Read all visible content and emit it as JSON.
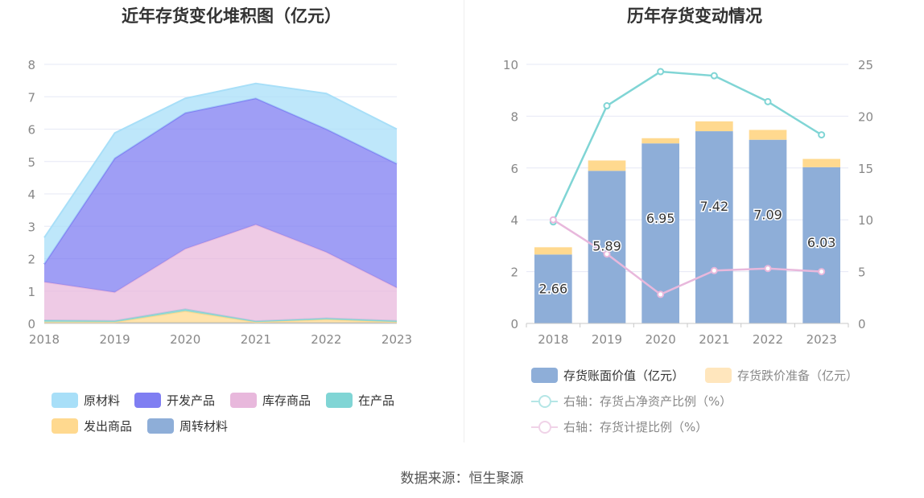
{
  "left_chart": {
    "title": "近年存货变化堆积图（亿元）",
    "legend": [
      "原材料",
      "开发产品",
      "库存商品",
      "在产品",
      "发出商品",
      "周转材料"
    ]
  },
  "right_chart": {
    "title": "历年存货变动情况",
    "legend": [
      "存货账面价值（亿元）",
      "存货跌价准备（亿元）",
      "右轴：存货占净资产比例（%）",
      "右轴：存货计提比例（%）"
    ]
  },
  "source": "数据来源：恒生聚源",
  "chart_data": [
    {
      "type": "area",
      "stacked": true,
      "title": "近年存货变化堆积图（亿元）",
      "x": [
        "2018",
        "2019",
        "2020",
        "2021",
        "2022",
        "2023"
      ],
      "y_ticks": [
        "0",
        "1",
        "2",
        "3",
        "4",
        "5",
        "6",
        "7",
        "8"
      ],
      "ylim": [
        0,
        8
      ],
      "series": [
        {
          "name": "周转材料",
          "color": "#8eaed8",
          "values": [
            0.02,
            0.02,
            0.02,
            0.02,
            0.02,
            0.02
          ]
        },
        {
          "name": "发出商品",
          "color": "#ffd98f",
          "values": [
            0.02,
            0.02,
            0.36,
            0.02,
            0.1,
            0.02
          ]
        },
        {
          "name": "在产品",
          "color": "#80d5d5",
          "values": [
            0.06,
            0.04,
            0.06,
            0.03,
            0.04,
            0.04
          ]
        },
        {
          "name": "库存商品",
          "color": "#e8b8dc",
          "values": [
            1.18,
            0.88,
            1.86,
            2.98,
            2.04,
            1.02
          ]
        },
        {
          "name": "开发产品",
          "color": "#7f7ef2",
          "values": [
            0.55,
            4.14,
            4.2,
            3.9,
            3.8,
            3.83
          ]
        },
        {
          "name": "原材料",
          "color": "#a8dff8",
          "values": [
            0.82,
            0.78,
            0.45,
            0.46,
            1.1,
            1.07
          ]
        }
      ],
      "grid": true,
      "legend_position": "bottom"
    },
    {
      "type": "bar",
      "title": "历年存货变动情况",
      "categories": [
        "2018",
        "2019",
        "2020",
        "2021",
        "2022",
        "2023"
      ],
      "y_left_ticks": [
        "0",
        "2",
        "4",
        "6",
        "8",
        "10"
      ],
      "y_right_ticks": [
        "0",
        "5",
        "10",
        "15",
        "20",
        "25"
      ],
      "ylim_left": [
        0,
        10
      ],
      "ylim_right": [
        0,
        25
      ],
      "stacked_bars": [
        {
          "name": "存货账面价值（亿元）",
          "color": "#8eaed8",
          "values": [
            2.66,
            5.89,
            6.95,
            7.42,
            7.09,
            6.03
          ],
          "labels": [
            "2.66",
            "5.89",
            "6.95",
            "7.42",
            "7.09",
            "6.03"
          ]
        },
        {
          "name": "存货跌价准备（亿元）",
          "color": "#ffd98f",
          "values": [
            0.28,
            0.4,
            0.2,
            0.38,
            0.38,
            0.32
          ]
        }
      ],
      "lines": [
        {
          "name": "右轴：存货占净资产比例（%）",
          "color": "#80d5d5",
          "axis": "right",
          "values": [
            9.8,
            21.0,
            24.3,
            23.9,
            21.4,
            18.2
          ]
        },
        {
          "name": "右轴：存货计提比例（%）",
          "color": "#e8b8dc",
          "axis": "right",
          "values": [
            10.0,
            6.7,
            2.8,
            5.1,
            5.3,
            5.0
          ]
        }
      ],
      "grid": true,
      "legend_position": "bottom"
    }
  ]
}
